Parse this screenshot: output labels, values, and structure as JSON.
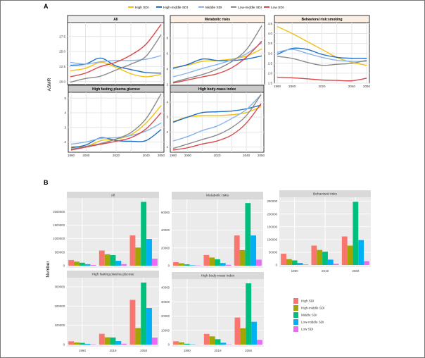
{
  "panel_labels": {
    "a": "A",
    "b": "B"
  },
  "chart_data": [
    {
      "type": "line",
      "panel": "A",
      "ylabel": "ASMR",
      "legend": {
        "placement": "top",
        "entries": [
          "High SDI",
          "High-middle SDI",
          "Middle SDI",
          "Low-middle SDI",
          "Low SDI"
        ]
      },
      "series_colors": [
        "#f2c012",
        "#1f6fc4",
        "#86b4ea",
        "#8a8a8a",
        "#d9484a"
      ],
      "x": [
        1990,
        2000,
        2010,
        2020,
        2030,
        2040,
        2050
      ],
      "facets": [
        {
          "title": "All",
          "ylim": [
            19.5,
            29.8
          ],
          "yticks": [
            "20.0",
            "22.5",
            "25.0",
            "27.5"
          ],
          "ytick_values": [
            20,
            22.5,
            25,
            27.5
          ],
          "xticks": [],
          "series": [
            {
              "name": "High SDI",
              "values": [
                21.8,
                22.2,
                23.2,
                22.4,
                21.3,
                20.8,
                21.2
              ]
            },
            {
              "name": "High-middle SDI",
              "values": [
                22.7,
                22.9,
                23.9,
                22.6,
                22.0,
                21.5,
                21.4
              ]
            },
            {
              "name": "Middle SDI",
              "values": [
                23.2,
                22.9,
                23.3,
                23.5,
                23.5,
                23.7,
                24.3
              ]
            },
            {
              "name": "Low-middle SDI",
              "values": [
                19.9,
                20.5,
                20.9,
                21.9,
                22.9,
                24.2,
                27.8
              ]
            },
            {
              "name": "Low SDI",
              "values": [
                20.8,
                21.4,
                22.5,
                23.2,
                24.4,
                26.2,
                29.5
              ]
            }
          ]
        },
        {
          "title": "Metabolic risks",
          "ylim": [
            2.0,
            10.0
          ],
          "yticks": [
            "2",
            "4",
            "6",
            "8"
          ],
          "ytick_values": [
            2,
            4,
            6,
            8
          ],
          "xticks": [],
          "series": [
            {
              "name": "High SDI",
              "values": [
                4.2,
                4.5,
                5.0,
                5.1,
                5.3,
                5.7,
                6.6
              ]
            },
            {
              "name": "High-middle SDI",
              "values": [
                4.1,
                4.6,
                5.3,
                5.1,
                5.1,
                5.3,
                5.7
              ]
            },
            {
              "name": "Middle SDI",
              "values": [
                3.0,
                3.5,
                4.1,
                4.6,
                5.2,
                6.0,
                7.4
              ]
            },
            {
              "name": "Low-middle SDI",
              "values": [
                2.3,
                2.8,
                3.3,
                4.0,
                5.0,
                6.6,
                9.6
              ]
            },
            {
              "name": "Low SDI",
              "values": [
                2.2,
                2.6,
                3.0,
                3.4,
                4.2,
                5.6,
                7.6
              ]
            }
          ]
        },
        {
          "title": "Behavioral risk:smoking",
          "ylim": [
            1.5,
            4.55
          ],
          "yticks": [
            "1.5",
            "2.0",
            "2.5",
            "3.0",
            "3.5",
            "4.0",
            "4.5"
          ],
          "ytick_values": [
            1.5,
            2.0,
            2.5,
            3.0,
            3.5,
            4.0,
            4.5
          ],
          "xticks": [
            "1990",
            "2000",
            "2020",
            "2040",
            "2050"
          ],
          "xtick_values": [
            1990,
            2000,
            2020,
            2040,
            2050
          ],
          "series": [
            {
              "name": "High SDI",
              "values": [
                4.35,
                4.0,
                3.6,
                3.2,
                2.8,
                2.55,
                2.4
              ]
            },
            {
              "name": "High-middle SDI",
              "values": [
                2.95,
                3.25,
                3.2,
                2.95,
                2.8,
                2.75,
                2.75
              ]
            },
            {
              "name": "Middle SDI",
              "values": [
                3.05,
                3.2,
                3.0,
                2.8,
                2.65,
                2.6,
                2.6
              ]
            },
            {
              "name": "Low-middle SDI",
              "values": [
                2.85,
                2.75,
                2.55,
                2.4,
                2.45,
                2.5,
                2.65
              ]
            },
            {
              "name": "Low SDI",
              "values": [
                1.8,
                1.77,
                1.72,
                1.66,
                1.64,
                1.62,
                1.75
              ]
            }
          ]
        },
        {
          "title": "High fasting plasma glucose",
          "ylim": [
            1.3,
            5.4
          ],
          "yticks": [
            "2",
            "3",
            "4",
            "5"
          ],
          "ytick_values": [
            2,
            3,
            4,
            5
          ],
          "xticks": [
            "1990",
            "2000",
            "2020",
            "2040",
            "2050"
          ],
          "xtick_values": [
            1990,
            2000,
            2020,
            2040,
            2050
          ],
          "series": [
            {
              "name": "High SDI",
              "values": [
                1.7,
                1.7,
                2.1,
                2.2,
                2.5,
                3.3,
                4.5
              ]
            },
            {
              "name": "High-middle SDI",
              "values": [
                1.6,
                1.8,
                2.3,
                2.1,
                2.05,
                2.1,
                2.85
              ]
            },
            {
              "name": "Middle SDI",
              "values": [
                1.85,
                2.0,
                2.25,
                2.3,
                2.45,
                2.75,
                3.3
              ]
            },
            {
              "name": "Low-middle SDI",
              "values": [
                1.5,
                1.7,
                1.9,
                2.2,
                2.65,
                3.6,
                5.3
              ]
            },
            {
              "name": "Low SDI",
              "values": [
                1.45,
                1.65,
                1.85,
                2.05,
                2.3,
                2.9,
                4.0
              ]
            }
          ]
        },
        {
          "title": "High body-mass index",
          "ylim": [
            0.65,
            4.65
          ],
          "yticks": [
            "1",
            "2",
            "3",
            "4"
          ],
          "ytick_values": [
            1,
            2,
            3,
            4
          ],
          "xticks": [
            "1990",
            "2000",
            "2020",
            "2040",
            "2050"
          ],
          "xtick_values": [
            1990,
            2000,
            2020,
            2040,
            2050
          ],
          "series": [
            {
              "name": "High SDI",
              "values": [
                2.7,
                3.0,
                3.1,
                3.1,
                3.15,
                3.3,
                3.7
              ]
            },
            {
              "name": "High-middle SDI",
              "values": [
                2.65,
                3.0,
                3.3,
                3.35,
                3.4,
                3.55,
                3.8
              ]
            },
            {
              "name": "Middle SDI",
              "values": [
                1.4,
                1.7,
                2.1,
                2.4,
                2.9,
                3.5,
                4.5
              ]
            },
            {
              "name": "Low-middle SDI",
              "values": [
                0.9,
                1.2,
                1.5,
                1.8,
                2.3,
                3.1,
                4.5
              ]
            },
            {
              "name": "Low SDI",
              "values": [
                0.8,
                0.95,
                1.2,
                1.4,
                1.8,
                2.6,
                3.9
              ]
            }
          ]
        }
      ]
    },
    {
      "type": "bar",
      "panel": "B",
      "ylabel": "Number",
      "categories": [
        "1990",
        "2019",
        "2050"
      ],
      "legend": {
        "placement": "right",
        "entries": [
          "High SDI",
          "High-middle SDI",
          "Middle SDI",
          "Low-middle SDI",
          "Low SDI"
        ]
      },
      "series_colors": [
        "#F8766D",
        "#A3A500",
        "#00BF7D",
        "#00B0F6",
        "#E76BF3"
      ],
      "facets": [
        {
          "title": "All",
          "ylim": [
            0,
            2450000
          ],
          "yticks": [
            "0",
            "500000",
            "1000000",
            "1500000",
            "2000000"
          ],
          "ytick_values": [
            0,
            500000,
            1000000,
            1500000,
            2000000
          ],
          "show_xlabels": false,
          "values": [
            [
              210000,
              150000,
              110000,
              55000,
              25000
            ],
            [
              560000,
              420000,
              390000,
              180000,
              60000
            ],
            [
              1120000,
              670000,
              2360000,
              990000,
              255000
            ]
          ]
        },
        {
          "title": "Metabolic risks",
          "ylim": [
            0,
            73000
          ],
          "yticks": [
            "0",
            "20000",
            "40000",
            "60000"
          ],
          "ytick_values": [
            0,
            20000,
            40000,
            60000
          ],
          "show_xlabels": false,
          "values": [
            [
              4000,
              2700,
              1500,
              500,
              300
            ],
            [
              12000,
              9200,
              7200,
              3000,
              1000
            ],
            [
              34000,
              17500,
              70500,
              34000,
              6800
            ]
          ]
        },
        {
          "title": "Behavioral risks",
          "ylim": [
            0,
            260000
          ],
          "yticks": [
            "0",
            "50000",
            "100000",
            "150000",
            "200000",
            "250000"
          ],
          "ytick_values": [
            0,
            50000,
            100000,
            150000,
            200000,
            250000
          ],
          "show_xlabels": true,
          "values": [
            [
              44000,
              23000,
              18000,
              8000,
              2000
            ],
            [
              76000,
              59000,
              52000,
              21000,
              4500
            ],
            [
              112000,
              76000,
              248000,
              98000,
              15000
            ]
          ]
        },
        {
          "title": "High fasting plasma glucose",
          "ylim": [
            0,
            340000
          ],
          "yticks": [
            "0",
            "100000",
            "200000",
            "300000"
          ],
          "ytick_values": [
            0,
            100000,
            200000,
            300000
          ],
          "show_xlabels": true,
          "values": [
            [
              17000,
              11000,
              9000,
              4000,
              1500
            ],
            [
              56000,
              38000,
              37000,
              18000,
              4500
            ],
            [
              232000,
              86000,
              322000,
              190000,
              36000
            ]
          ]
        },
        {
          "title": "High body-mass index",
          "ylim": [
            0,
            45000
          ],
          "yticks": [
            "0",
            "10000",
            "20000",
            "30000",
            "40000"
          ],
          "ytick_values": [
            0,
            10000,
            20000,
            30000,
            40000
          ],
          "show_xlabels": true,
          "values": [
            [
              2300,
              1600,
              600,
              200,
              50
            ],
            [
              7500,
              5800,
              3800,
              1300,
              200
            ],
            [
              19000,
              11500,
              43000,
              16000,
              3300
            ]
          ]
        }
      ]
    }
  ]
}
